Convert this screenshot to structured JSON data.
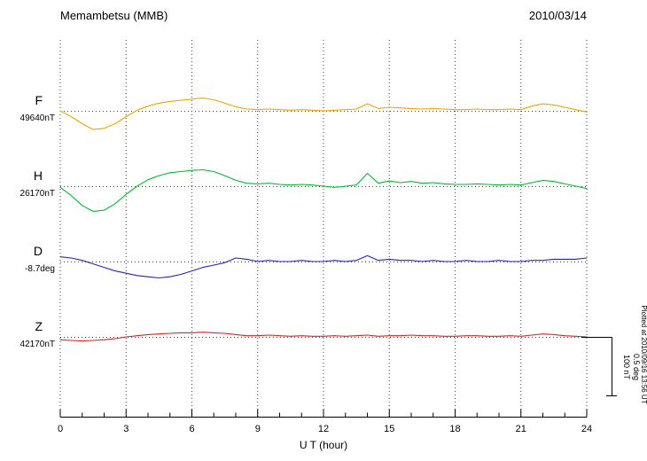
{
  "header": {
    "title": "Memambetsu (MMB)",
    "date": "2010/03/14"
  },
  "scalebar": {
    "nt_label": "100 nT",
    "deg_label": "0.5 deg"
  },
  "footer_note": "Plotted at 2010/09/16 13:56 UT",
  "chart_data": {
    "type": "line",
    "station": "Memambetsu (MMB)",
    "date": "2010/03/14",
    "xlabel": "U T (hour)",
    "xlim": [
      0,
      24
    ],
    "xticks": [
      0,
      3,
      6,
      9,
      12,
      15,
      18,
      21,
      24
    ],
    "scale_bar": {
      "nT": 100,
      "deg": 0.5
    },
    "x_hours": [
      0,
      0.5,
      1,
      1.5,
      2,
      2.5,
      3,
      3.5,
      4,
      4.5,
      5,
      5.5,
      6,
      6.5,
      7,
      7.5,
      8,
      8.5,
      9,
      9.5,
      10,
      10.5,
      11,
      11.5,
      12,
      12.5,
      13,
      13.5,
      14,
      14.5,
      15,
      15.5,
      16,
      16.5,
      17,
      17.5,
      18,
      18.5,
      19,
      19.5,
      20,
      20.5,
      21,
      21.5,
      22,
      22.5,
      23,
      23.5,
      24
    ],
    "series": [
      {
        "name": "F",
        "units": "nT",
        "baseline_value": "49640nT",
        "color": "#efa400",
        "offsets": [
          0,
          -10,
          -22,
          -32,
          -30,
          -22,
          -10,
          1,
          8,
          13,
          16,
          18,
          20,
          22,
          19,
          13,
          7,
          3,
          2,
          3,
          2,
          1,
          2,
          1,
          0,
          1,
          2,
          3,
          12,
          4,
          6,
          5,
          4,
          3,
          4,
          3,
          2,
          2,
          3,
          2,
          2,
          3,
          2,
          8,
          12,
          10,
          6,
          2,
          -2
        ]
      },
      {
        "name": "H",
        "units": "nT",
        "baseline_value": "26170nT",
        "color": "#00bd30",
        "offsets": [
          -2,
          -16,
          -33,
          -43,
          -41,
          -30,
          -14,
          0,
          11,
          18,
          23,
          25,
          27,
          28,
          25,
          18,
          10,
          5,
          4,
          5,
          3,
          2,
          3,
          2,
          0,
          -2,
          0,
          2,
          22,
          5,
          9,
          6,
          8,
          5,
          6,
          4,
          3,
          3,
          4,
          3,
          2,
          3,
          2,
          6,
          10,
          8,
          4,
          0,
          -4
        ]
      },
      {
        "name": "D",
        "units": "deg",
        "baseline_value": "-8.7deg",
        "color": "#2222cc",
        "offsets": [
          0.04,
          0.03,
          0.01,
          -0.02,
          -0.05,
          -0.08,
          -0.1,
          -0.12,
          -0.13,
          -0.14,
          -0.13,
          -0.11,
          -0.08,
          -0.05,
          -0.03,
          -0.01,
          0.03,
          0.02,
          0,
          0.01,
          0,
          0,
          0.01,
          0,
          0,
          0.01,
          0,
          0.01,
          0.05,
          0.01,
          0.02,
          0.01,
          0.01,
          0,
          0.01,
          0,
          0,
          0.01,
          0,
          0,
          0.01,
          0,
          0,
          0.01,
          0.01,
          0.02,
          0.02,
          0.02,
          0.03
        ]
      },
      {
        "name": "Z",
        "units": "nT",
        "baseline_value": "42170nT",
        "color": "#dd2222",
        "offsets": [
          -5,
          -6,
          -7,
          -6,
          -5,
          -3,
          0,
          2,
          4,
          5,
          6,
          7,
          7,
          8,
          7,
          6,
          4,
          2,
          2,
          3,
          2,
          1,
          2,
          1,
          1,
          2,
          1,
          2,
          3,
          1,
          2,
          2,
          3,
          2,
          2,
          1,
          1,
          2,
          2,
          1,
          1,
          2,
          1,
          3,
          5,
          4,
          2,
          1,
          0
        ]
      }
    ]
  }
}
